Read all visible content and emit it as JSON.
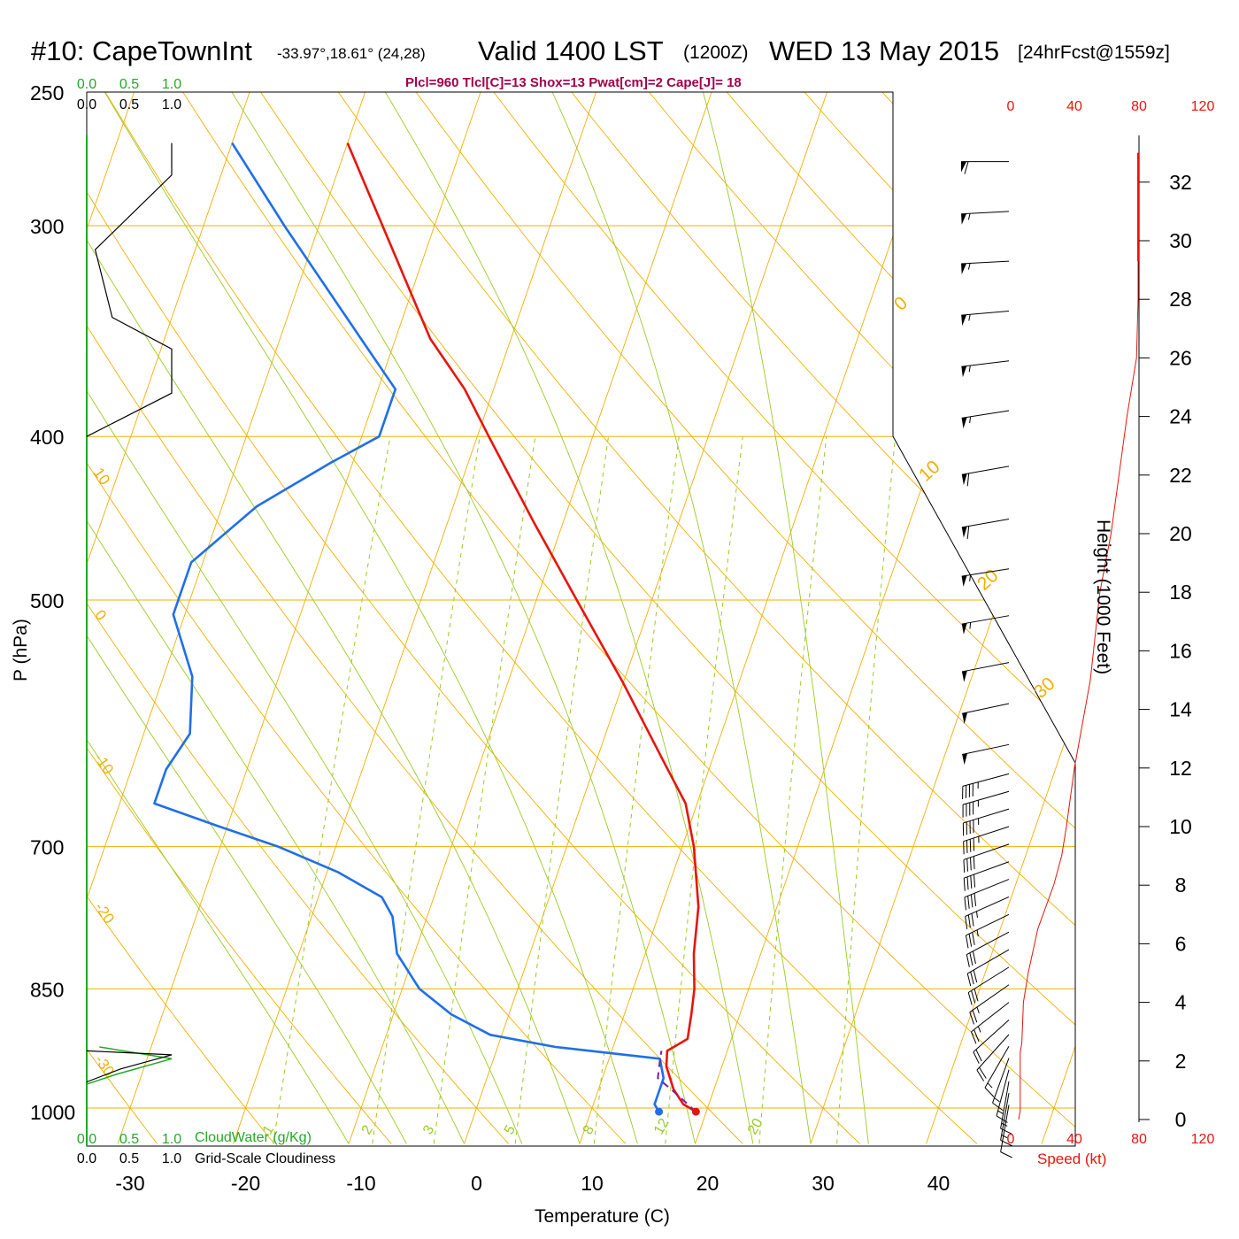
{
  "header": {
    "station": "#10: CapeTownInt",
    "coords": "-33.97°,18.61° (24,28)",
    "valid": "Valid 1400 LST",
    "zulu": "(1200Z)",
    "date": "WED 13 May 2015",
    "forecast": "[24hrFcst@1559z]",
    "indices": "Plcl=960 Tlcl[C]=13 Shox=13 Pwat[cm]=2 Cape[J]= 18"
  },
  "colors": {
    "temperature": "#e8140c",
    "dewpoint": "#1f6fe8",
    "isobar": "#f0b000",
    "dry_adiabat": "#f0b000",
    "moist_adiabat": "#99cc22",
    "mixing_ratio": "#99cc22",
    "cloudwater": "#22aa22",
    "wind_speed": "#e8140c",
    "indices": "#a0004a"
  },
  "left_axis": {
    "label": "P (hPa)",
    "ticks": [
      "250",
      "300",
      "400",
      "500",
      "700",
      "850",
      "1000"
    ]
  },
  "bottom_axis": {
    "label": "Temperature (C)",
    "ticks": [
      "-30",
      "-20",
      "-10",
      "0",
      "10",
      "20",
      "30",
      "40"
    ]
  },
  "right_axis": {
    "label": "Height (1000 Feet)",
    "ticks": [
      "0",
      "2",
      "4",
      "6",
      "8",
      "10",
      "12",
      "14",
      "16",
      "18",
      "20",
      "22",
      "24",
      "26",
      "28",
      "30",
      "32"
    ]
  },
  "cloud_panel": {
    "top_green": [
      "0.0",
      "0.5",
      "1.0"
    ],
    "top_black": [
      "0.0",
      "0.5",
      "1.0"
    ],
    "bottom_green": [
      "0.0",
      "0.5",
      "1.0"
    ],
    "bottom_black": [
      "0.0",
      "0.5",
      "1.0"
    ],
    "cloudwater_label": "CloudWater (g/Kg)",
    "cloudiness_label": "Grid-Scale Cloudiness"
  },
  "speed_panel": {
    "top_ticks": [
      "0",
      "40",
      "80",
      "120"
    ],
    "bottom_ticks": [
      "0",
      "40",
      "80",
      "120"
    ],
    "label": "Speed (kt)"
  },
  "line_labels": {
    "dry_adiabats": [
      "10",
      "0",
      "-10",
      "-20",
      "-30"
    ],
    "isotherms_right": [
      "0",
      "10",
      "20",
      "30"
    ],
    "mixing_ratios": [
      "1",
      "2",
      "3",
      "5",
      "8",
      "12",
      "20"
    ]
  },
  "chart_data": {
    "type": "line",
    "title": "Valid 1400 LST (1200Z) WED 13 May 2015",
    "xlabel": "Temperature (C)",
    "ylabel": "P (hPa)",
    "x_range": [
      -33,
      45
    ],
    "y_range_hpa": [
      1030,
      250
    ],
    "y_scale": "log",
    "skew": "skew-T",
    "series": [
      {
        "name": "temperature",
        "points": [
          {
            "p": 1005,
            "t": 19.1
          },
          {
            "p": 995,
            "t": 17.8
          },
          {
            "p": 975,
            "t": 16.5
          },
          {
            "p": 945,
            "t": 15.2
          },
          {
            "p": 925,
            "t": 14.8
          },
          {
            "p": 910,
            "t": 16.2
          },
          {
            "p": 880,
            "t": 15.8
          },
          {
            "p": 850,
            "t": 15.3
          },
          {
            "p": 810,
            "t": 14.2
          },
          {
            "p": 760,
            "t": 13.2
          },
          {
            "p": 700,
            "t": 11.0
          },
          {
            "p": 660,
            "t": 9.0
          },
          {
            "p": 625,
            "t": 6.0
          },
          {
            "p": 560,
            "t": 0.0
          },
          {
            "p": 500,
            "t": -6.5
          },
          {
            "p": 450,
            "t": -12.5
          },
          {
            "p": 400,
            "t": -19.0
          },
          {
            "p": 375,
            "t": -22.5
          },
          {
            "p": 350,
            "t": -27.0
          },
          {
            "p": 300,
            "t": -34.5
          },
          {
            "p": 268,
            "t": -40.0
          }
        ]
      },
      {
        "name": "dewpoint",
        "points": [
          {
            "p": 1005,
            "t": 15.9
          },
          {
            "p": 995,
            "t": 15.3
          },
          {
            "p": 960,
            "t": 15.3
          },
          {
            "p": 935,
            "t": 14.4
          },
          {
            "p": 920,
            "t": 5.0
          },
          {
            "p": 905,
            "t": -1.0
          },
          {
            "p": 880,
            "t": -5.0
          },
          {
            "p": 850,
            "t": -8.5
          },
          {
            "p": 810,
            "t": -11.5
          },
          {
            "p": 770,
            "t": -13.0
          },
          {
            "p": 750,
            "t": -14.5
          },
          {
            "p": 725,
            "t": -19.0
          },
          {
            "p": 700,
            "t": -25.0
          },
          {
            "p": 680,
            "t": -31.0
          },
          {
            "p": 660,
            "t": -37.0
          },
          {
            "p": 630,
            "t": -37.0
          },
          {
            "p": 600,
            "t": -36.0
          },
          {
            "p": 555,
            "t": -37.5
          },
          {
            "p": 510,
            "t": -41.0
          },
          {
            "p": 475,
            "t": -41.0
          },
          {
            "p": 440,
            "t": -37.0
          },
          {
            "p": 415,
            "t": -32.0
          },
          {
            "p": 400,
            "t": -28.5
          },
          {
            "p": 375,
            "t": -28.5
          },
          {
            "p": 350,
            "t": -33.0
          },
          {
            "p": 300,
            "t": -43.0
          },
          {
            "p": 268,
            "t": -50.0
          }
        ]
      },
      {
        "name": "parcel",
        "points": [
          {
            "p": 1005,
            "t": 19.1
          },
          {
            "p": 980,
            "t": 16.8
          },
          {
            "p": 960,
            "t": 14.8
          },
          {
            "p": 940,
            "t": 14.5
          },
          {
            "p": 925,
            "t": 14.3
          }
        ]
      }
    ],
    "points": [
      {
        "name": "surface_temperature",
        "p": 1005,
        "t": 19.1
      },
      {
        "name": "surface_dewpoint",
        "p": 1005,
        "t": 15.9
      }
    ],
    "isobars_hpa": [
      250,
      300,
      400,
      500,
      700,
      850,
      1000
    ],
    "dry_adiabats_c": [
      -40,
      -30,
      -20,
      -10,
      0,
      10,
      20,
      30,
      40,
      50,
      60
    ],
    "moist_adiabats_c": [
      0,
      10,
      20,
      30
    ],
    "mixing_ratios_gkg": [
      1,
      2,
      3,
      5,
      8,
      12,
      20
    ],
    "cloud_water_gkg": [
      {
        "p": 920,
        "value": 0.15
      },
      {
        "p": 935,
        "value": 1.0
      },
      {
        "p": 955,
        "value": 0.35
      },
      {
        "p": 968,
        "value": 0.0
      }
    ],
    "cloudiness": [
      {
        "p": 268,
        "value": 1.0
      },
      {
        "p": 280,
        "value": 1.0
      },
      {
        "p": 310,
        "value": 0.1
      },
      {
        "p": 340,
        "value": 0.3
      },
      {
        "p": 355,
        "value": 1.0
      },
      {
        "p": 377,
        "value": 1.0
      },
      {
        "p": 400,
        "value": 0.0
      },
      {
        "p": 925,
        "value": 0.0
      },
      {
        "p": 930,
        "value": 1.0
      },
      {
        "p": 948,
        "value": 0.4
      },
      {
        "p": 965,
        "value": 0.0
      }
    ],
    "winds": [
      {
        "height_kft": 32.7,
        "dir": 270,
        "spd_kt": 60
      },
      {
        "height_kft": 31.0,
        "dir": 273,
        "spd_kt": 55
      },
      {
        "height_kft": 29.3,
        "dir": 273,
        "spd_kt": 55
      },
      {
        "height_kft": 27.6,
        "dir": 275,
        "spd_kt": 55
      },
      {
        "height_kft": 25.9,
        "dir": 277,
        "spd_kt": 55
      },
      {
        "height_kft": 24.2,
        "dir": 279,
        "spd_kt": 55
      },
      {
        "height_kft": 22.3,
        "dir": 280,
        "spd_kt": 60
      },
      {
        "height_kft": 20.5,
        "dir": 280,
        "spd_kt": 60
      },
      {
        "height_kft": 18.8,
        "dir": 279,
        "spd_kt": 55
      },
      {
        "height_kft": 17.2,
        "dir": 280,
        "spd_kt": 55
      },
      {
        "height_kft": 15.6,
        "dir": 281,
        "spd_kt": 50
      },
      {
        "height_kft": 14.2,
        "dir": 282,
        "spd_kt": 50
      },
      {
        "height_kft": 12.8,
        "dir": 282,
        "spd_kt": 50
      },
      {
        "height_kft": 11.8,
        "dir": 285,
        "spd_kt": 45
      },
      {
        "height_kft": 11.2,
        "dir": 286,
        "spd_kt": 45
      },
      {
        "height_kft": 10.6,
        "dir": 287,
        "spd_kt": 45
      },
      {
        "height_kft": 10.0,
        "dir": 288,
        "spd_kt": 45
      },
      {
        "height_kft": 9.4,
        "dir": 289,
        "spd_kt": 40
      },
      {
        "height_kft": 8.8,
        "dir": 290,
        "spd_kt": 40
      },
      {
        "height_kft": 8.2,
        "dir": 292,
        "spd_kt": 40
      },
      {
        "height_kft": 7.6,
        "dir": 294,
        "spd_kt": 35
      },
      {
        "height_kft": 7.0,
        "dir": 296,
        "spd_kt": 35
      },
      {
        "height_kft": 6.4,
        "dir": 298,
        "spd_kt": 30
      },
      {
        "height_kft": 5.8,
        "dir": 300,
        "spd_kt": 30
      },
      {
        "height_kft": 5.2,
        "dir": 302,
        "spd_kt": 30
      },
      {
        "height_kft": 4.6,
        "dir": 305,
        "spd_kt": 25
      },
      {
        "height_kft": 4.0,
        "dir": 308,
        "spd_kt": 25
      },
      {
        "height_kft": 3.4,
        "dir": 312,
        "spd_kt": 20
      },
      {
        "height_kft": 2.9,
        "dir": 318,
        "spd_kt": 20
      },
      {
        "height_kft": 2.5,
        "dir": 330,
        "spd_kt": 15
      },
      {
        "height_kft": 2.1,
        "dir": 340,
        "spd_kt": 15
      },
      {
        "height_kft": 1.7,
        "dir": 345,
        "spd_kt": 15
      },
      {
        "height_kft": 1.3,
        "dir": 350,
        "spd_kt": 15
      },
      {
        "height_kft": 0.9,
        "dir": 350,
        "spd_kt": 15
      },
      {
        "height_kft": 0.5,
        "dir": 350,
        "spd_kt": 10
      }
    ],
    "wind_speed_profile": [
      {
        "height_kft": 0.0,
        "spd_kt": 5
      },
      {
        "height_kft": 0.3,
        "spd_kt": 6
      },
      {
        "height_kft": 1.0,
        "spd_kt": 6
      },
      {
        "height_kft": 2.3,
        "spd_kt": 6
      },
      {
        "height_kft": 2.6,
        "spd_kt": 7
      },
      {
        "height_kft": 4.0,
        "spd_kt": 8
      },
      {
        "height_kft": 5.0,
        "spd_kt": 11
      },
      {
        "height_kft": 6.5,
        "spd_kt": 17
      },
      {
        "height_kft": 8.0,
        "spd_kt": 27
      },
      {
        "height_kft": 9.0,
        "spd_kt": 32
      },
      {
        "height_kft": 10.0,
        "spd_kt": 35
      },
      {
        "height_kft": 12.0,
        "spd_kt": 40
      },
      {
        "height_kft": 15.0,
        "spd_kt": 50
      },
      {
        "height_kft": 18.0,
        "spd_kt": 56
      },
      {
        "height_kft": 20.0,
        "spd_kt": 63
      },
      {
        "height_kft": 22.0,
        "spd_kt": 68
      },
      {
        "height_kft": 24.0,
        "spd_kt": 73
      },
      {
        "height_kft": 26.0,
        "spd_kt": 79
      },
      {
        "height_kft": 28.0,
        "spd_kt": 80
      },
      {
        "height_kft": 30.0,
        "spd_kt": 80
      },
      {
        "height_kft": 33.0,
        "spd_kt": 80
      }
    ]
  }
}
